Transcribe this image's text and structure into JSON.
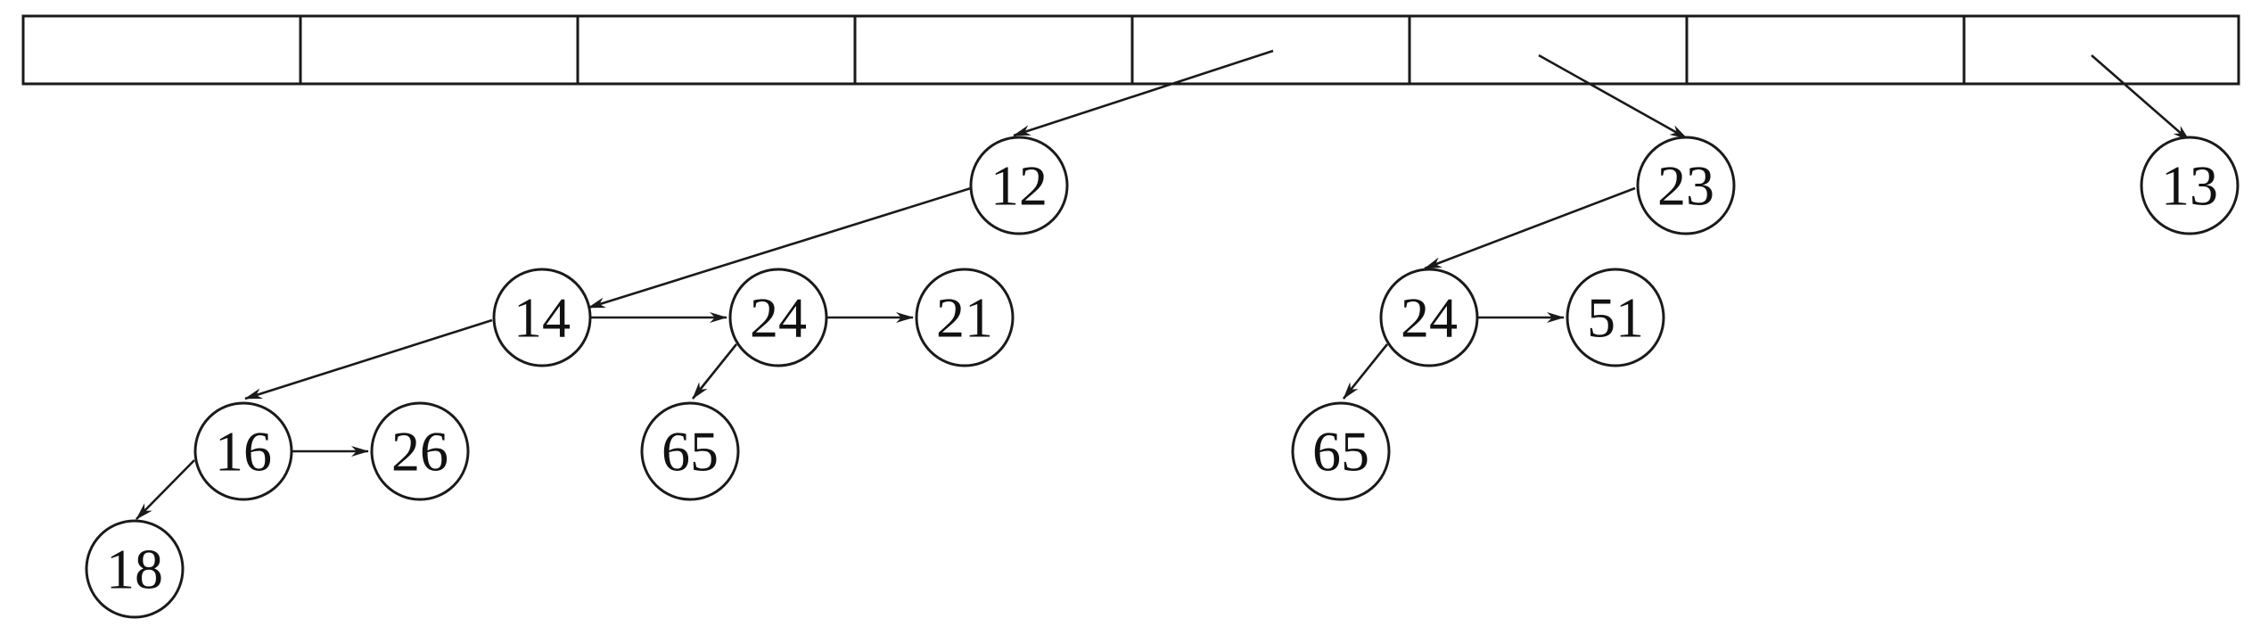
{
  "diagram": {
    "type": "binomial-queue",
    "array_slot_count": 8,
    "trees": [
      {
        "root": "12",
        "nodes": [
          {
            "id": "n12",
            "label": "12"
          },
          {
            "id": "n14",
            "label": "14"
          },
          {
            "id": "n24a",
            "label": "24"
          },
          {
            "id": "n21",
            "label": "21"
          },
          {
            "id": "n16",
            "label": "16"
          },
          {
            "id": "n26",
            "label": "26"
          },
          {
            "id": "n65a",
            "label": "65"
          },
          {
            "id": "n18",
            "label": "18"
          }
        ]
      },
      {
        "root": "23",
        "nodes": [
          {
            "id": "n23",
            "label": "23"
          },
          {
            "id": "n24b",
            "label": "24"
          },
          {
            "id": "n51",
            "label": "51"
          },
          {
            "id": "n65b",
            "label": "65"
          }
        ]
      },
      {
        "root": "13",
        "nodes": [
          {
            "id": "n13",
            "label": "13"
          }
        ]
      }
    ],
    "edges": [
      {
        "from": "slot-4",
        "to": "n12"
      },
      {
        "from": "slot-5",
        "to": "n23"
      },
      {
        "from": "slot-7",
        "to": "n13"
      },
      {
        "from": "n12",
        "to": "n14"
      },
      {
        "from": "n14",
        "to": "n24a"
      },
      {
        "from": "n24a",
        "to": "n21"
      },
      {
        "from": "n14",
        "to": "n16"
      },
      {
        "from": "n16",
        "to": "n26"
      },
      {
        "from": "n16",
        "to": "n18"
      },
      {
        "from": "n24a",
        "to": "n65a"
      },
      {
        "from": "n23",
        "to": "n24b"
      },
      {
        "from": "n24b",
        "to": "n51"
      },
      {
        "from": "n24b",
        "to": "n65b"
      }
    ]
  }
}
